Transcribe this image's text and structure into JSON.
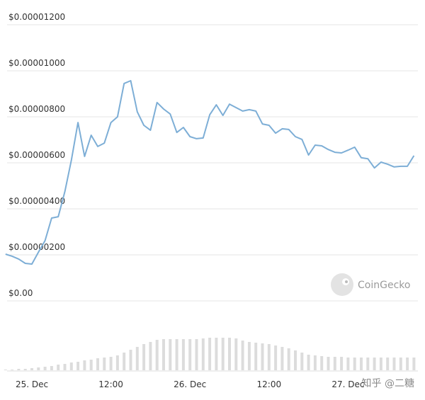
{
  "chart_data": {
    "type": "line",
    "categories": [
      null,
      null,
      null,
      null,
      "25. Dec",
      null,
      null,
      null,
      null,
      null,
      null,
      null,
      null,
      null,
      null,
      null,
      "12:00",
      null,
      null,
      null,
      null,
      null,
      null,
      null,
      null,
      null,
      null,
      null,
      "26. Dec",
      null,
      null,
      null,
      null,
      null,
      null,
      null,
      null,
      null,
      null,
      null,
      "12:00",
      null,
      null,
      null,
      null,
      null,
      null,
      null,
      null,
      null,
      null,
      null,
      "27. Dec",
      null,
      null,
      null,
      null,
      null,
      null,
      null,
      null,
      null,
      null
    ],
    "series": [
      {
        "name": "Price",
        "color": "#7daed6",
        "values": [
          2.03e-06,
          1.94e-06,
          1.82e-06,
          1.63e-06,
          1.6e-06,
          2.12e-06,
          2.62e-06,
          3.6e-06,
          3.66e-06,
          4.74e-06,
          6.12e-06,
          7.75e-06,
          6.28e-06,
          7.2e-06,
          6.71e-06,
          6.86e-06,
          7.75e-06,
          8e-06,
          9.45e-06,
          9.57e-06,
          8.22e-06,
          7.63e-06,
          7.42e-06,
          8.62e-06,
          8.34e-06,
          8.12e-06,
          7.32e-06,
          7.54e-06,
          7.14e-06,
          7.05e-06,
          7.08e-06,
          8.09e-06,
          8.52e-06,
          8.06e-06,
          8.55e-06,
          8.4e-06,
          8.25e-06,
          8.31e-06,
          8.25e-06,
          7.69e-06,
          7.63e-06,
          7.29e-06,
          7.48e-06,
          7.45e-06,
          7.14e-06,
          7.02e-06,
          6.34e-06,
          6.77e-06,
          6.74e-06,
          6.58e-06,
          6.46e-06,
          6.43e-06,
          6.55e-06,
          6.68e-06,
          6.22e-06,
          6.18e-06,
          5.78e-06,
          6.03e-06,
          5.94e-06,
          5.82e-06,
          5.85e-06,
          5.85e-06,
          6.31e-06
        ]
      },
      {
        "name": "Volume",
        "color": "#dcdcdc",
        "axis": "y2",
        "values": [
          1,
          1,
          2,
          2,
          3,
          4,
          5,
          6,
          8,
          9,
          11,
          12,
          14,
          15,
          17,
          18,
          19,
          21,
          25,
          29,
          33,
          37,
          40,
          43,
          44,
          44,
          44,
          44,
          44,
          44,
          45,
          46,
          46,
          46,
          46,
          45,
          42,
          40,
          39,
          38,
          37,
          35,
          33,
          31,
          28,
          25,
          22,
          21,
          20,
          19,
          19,
          19,
          18,
          18,
          18,
          18,
          18,
          18,
          18,
          18,
          18,
          18,
          18
        ]
      }
    ],
    "ylim": [
      0,
      1.2e-05
    ],
    "yticks": [
      {
        "value": 0,
        "label": "$0.00"
      },
      {
        "value": 2e-06,
        "label": "$0.00000200"
      },
      {
        "value": 4e-06,
        "label": "$0.00000400"
      },
      {
        "value": 6e-06,
        "label": "$0.00000600"
      },
      {
        "value": 8e-06,
        "label": "$0.00000800"
      },
      {
        "value": 1e-05,
        "label": "$0.00001000"
      },
      {
        "value": 1.2e-05,
        "label": "$0.00001200"
      }
    ],
    "y2lim": [
      0,
      60
    ],
    "grid": true,
    "watermarks": [
      "CoinGecko",
      "知乎 @二糖"
    ]
  }
}
